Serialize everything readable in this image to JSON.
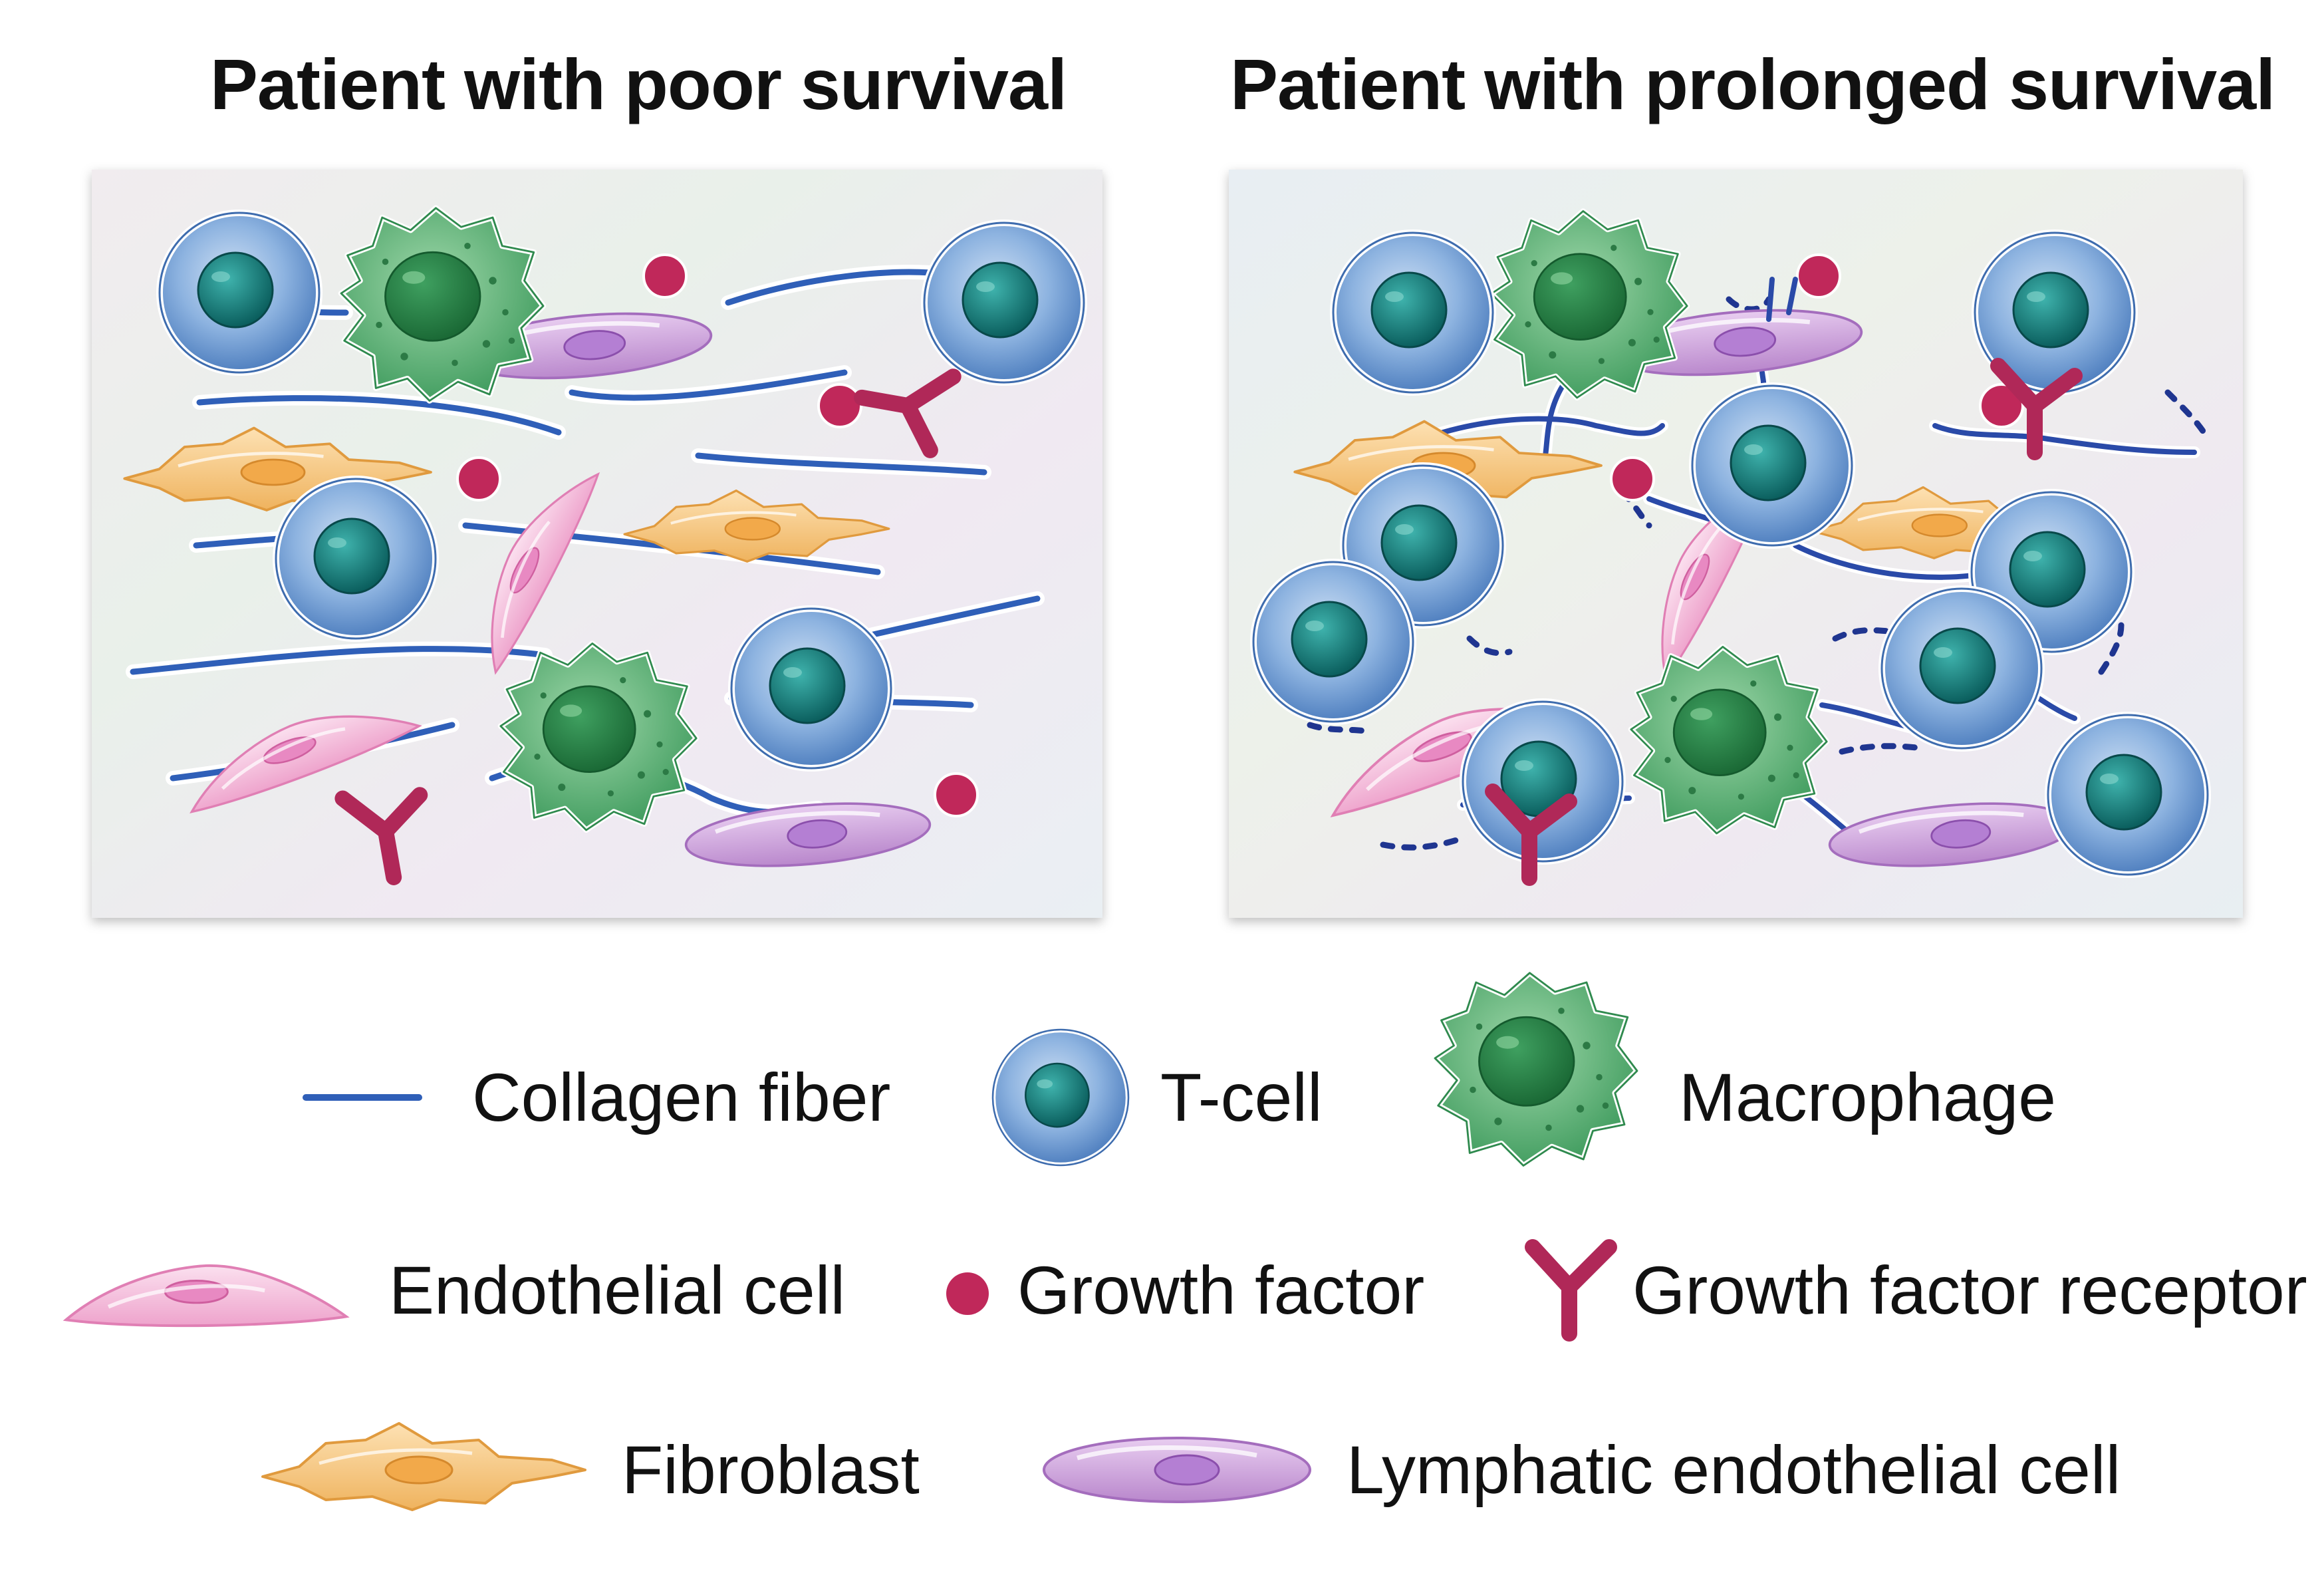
{
  "panels": {
    "left": {
      "title": "Patient with poor survival"
    },
    "right": {
      "title": "Patient with prolonged survival"
    }
  },
  "legend": [
    {
      "key": "collagen",
      "label": "Collagen fiber",
      "icon": "collagen-fiber-icon"
    },
    {
      "key": "tcell",
      "label": "T-cell",
      "icon": "t-cell-icon"
    },
    {
      "key": "macrophage",
      "label": "Macrophage",
      "icon": "macrophage-icon"
    },
    {
      "key": "endothelial",
      "label": "Endothelial cell",
      "icon": "endothelial-cell-icon"
    },
    {
      "key": "gf",
      "label": "Growth factor",
      "icon": "growth-factor-icon"
    },
    {
      "key": "gfr",
      "label": "Growth factor receptor",
      "icon": "growth-factor-receptor-icon"
    },
    {
      "key": "fibroblast",
      "label": "Fibroblast",
      "icon": "fibroblast-icon"
    },
    {
      "key": "lymphatic",
      "label": "Lymphatic endothelial cell",
      "icon": "lymphatic-endothelial-cell-icon"
    }
  ],
  "colors": {
    "collagen": "#2f5fb8",
    "tcell": "#7aa6d8",
    "tcell_nucleus": "#0f7a78",
    "macrophage": "#5db57a",
    "macrophage_nucleus": "#2b8a4a",
    "endothelial": "#f2b6d8",
    "fibroblast": "#f5c27a",
    "lymphatic": "#c99ad8",
    "growth_factor": "#c0285a",
    "receptor": "#b02858",
    "degraded_collagen": "#2a3f9a"
  }
}
